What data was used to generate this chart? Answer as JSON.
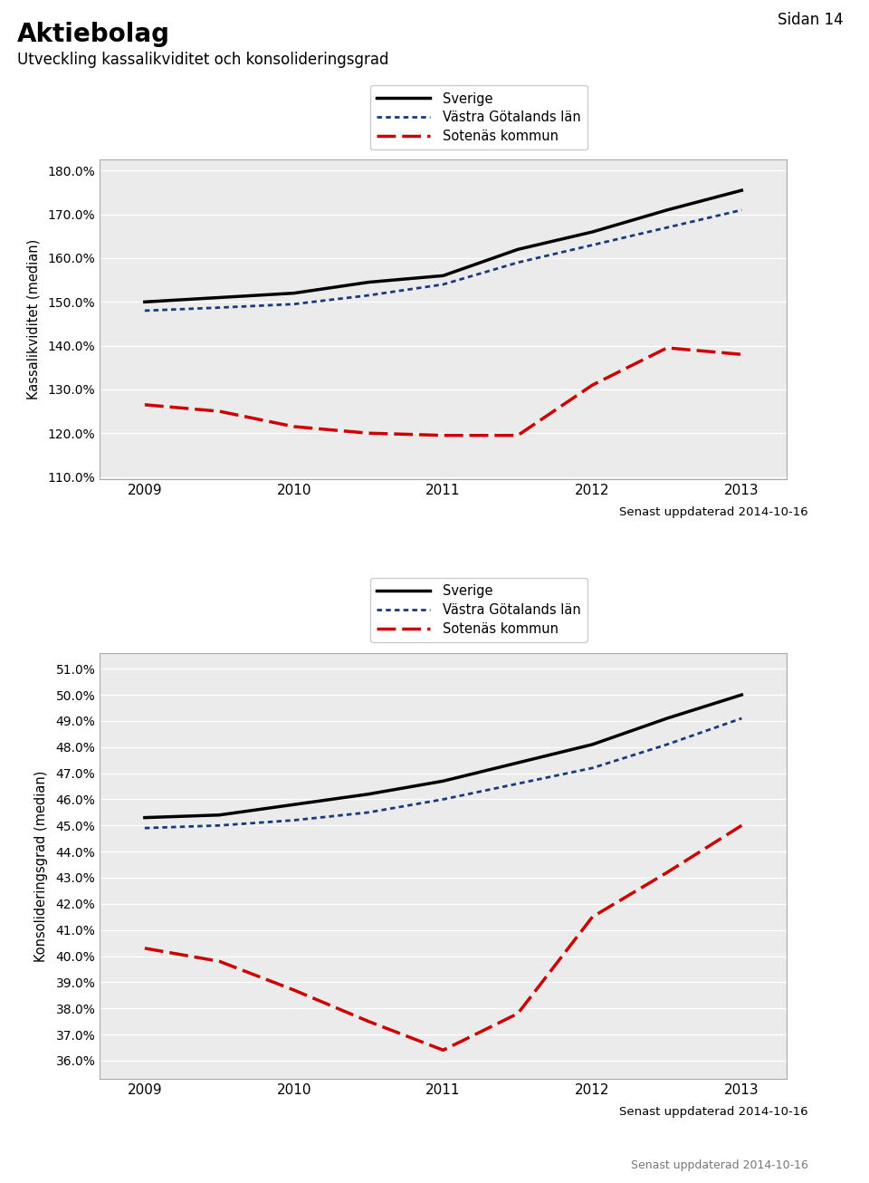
{
  "title": "Aktiebolag",
  "subtitle": "Utveckling kassalikviditet och konsolideringsgrad",
  "page_label": "Sidan 14",
  "update_label": "Senast uppdaterad 2014-10-16",
  "years": [
    2009,
    2010,
    2011,
    2012,
    2013
  ],
  "chart1": {
    "ylabel": "Kassalikviditet (median)",
    "sverige": [
      1.5,
      1.51,
      1.52,
      1.545,
      1.56,
      1.62,
      1.66,
      1.71,
      1.755
    ],
    "vastragotaland": [
      1.48,
      1.487,
      1.495,
      1.515,
      1.54,
      1.59,
      1.63,
      1.67,
      1.71
    ],
    "sotenas": [
      1.265,
      1.25,
      1.215,
      1.2,
      1.195,
      1.195,
      1.31,
      1.395,
      1.38
    ],
    "x": [
      2009,
      2009.5,
      2010,
      2010.5,
      2011,
      2011.5,
      2012,
      2012.5,
      2013
    ],
    "ylim": [
      1.095,
      1.825
    ],
    "yticks": [
      1.1,
      1.2,
      1.3,
      1.4,
      1.5,
      1.6,
      1.7,
      1.8
    ],
    "ytick_labels": [
      "110.0%",
      "120.0%",
      "130.0%",
      "140.0%",
      "150.0%",
      "160.0%",
      "170.0%",
      "180.0%"
    ]
  },
  "chart2": {
    "ylabel": "Konsolideringsgrad (median)",
    "sverige": [
      0.453,
      0.454,
      0.458,
      0.462,
      0.467,
      0.474,
      0.481,
      0.491,
      0.5
    ],
    "vastragotaland": [
      0.449,
      0.45,
      0.452,
      0.455,
      0.46,
      0.466,
      0.472,
      0.481,
      0.491
    ],
    "sotenas": [
      0.403,
      0.398,
      0.387,
      0.375,
      0.364,
      0.378,
      0.415,
      0.432,
      0.45
    ],
    "x": [
      2009,
      2009.5,
      2010,
      2010.5,
      2011,
      2011.5,
      2012,
      2012.5,
      2013
    ],
    "ylim": [
      0.353,
      0.516
    ],
    "yticks": [
      0.36,
      0.37,
      0.38,
      0.39,
      0.4,
      0.41,
      0.42,
      0.43,
      0.44,
      0.45,
      0.46,
      0.47,
      0.48,
      0.49,
      0.5,
      0.51
    ],
    "ytick_labels": [
      "36.0%",
      "37.0%",
      "38.0%",
      "39.0%",
      "40.0%",
      "41.0%",
      "42.0%",
      "43.0%",
      "44.0%",
      "45.0%",
      "46.0%",
      "47.0%",
      "48.0%",
      "49.0%",
      "50.0%",
      "51.0%"
    ]
  },
  "sverige_color": "#000000",
  "vastragotaland_color": "#1a3a7a",
  "sotenas_color": "#cc0000",
  "legend_labels": [
    "Sverige",
    "Västra Götalands län",
    "Sotenäs kommun"
  ],
  "plot_bg_color": "#ebebeb"
}
